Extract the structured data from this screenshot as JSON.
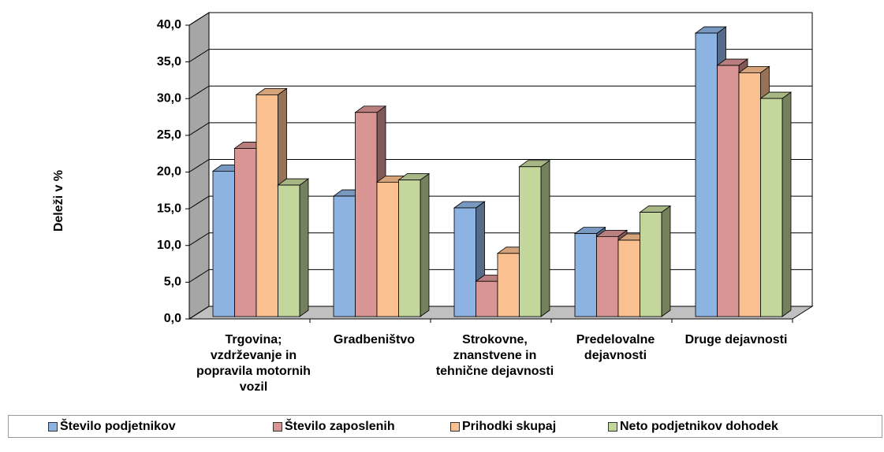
{
  "chart_data": {
    "type": "bar3d",
    "y_label": "Deleži v %",
    "categories": [
      "Trgovina; vzdrževanje in popravila motornih vozil",
      "Gradbeništvo",
      "Strokovne, znanstvene in tehnične dejavnosti",
      "Predelovalne dejavnosti",
      "Druge dejavnosti"
    ],
    "series": [
      {
        "name": "Število podjetnikov",
        "color": "#8db3e2",
        "values": [
          19.8,
          16.4,
          14.8,
          11.3,
          38.6
        ]
      },
      {
        "name": "Število zaposlenih",
        "color": "#d99594",
        "values": [
          22.9,
          27.8,
          4.8,
          10.9,
          34.2
        ]
      },
      {
        "name": "Prihodki skupaj",
        "color": "#fac08f",
        "values": [
          30.2,
          18.3,
          8.6,
          10.4,
          33.2
        ]
      },
      {
        "name": "Neto podjetnikov dohodek",
        "color": "#c3d69b",
        "values": [
          17.9,
          18.6,
          20.4,
          14.2,
          29.7
        ]
      }
    ],
    "ylim": [
      0,
      40
    ],
    "yticks": [
      {
        "value": 0,
        "label": "0,0"
      },
      {
        "value": 5,
        "label": "5,0"
      },
      {
        "value": 10,
        "label": "10,0"
      },
      {
        "value": 15,
        "label": "15,0"
      },
      {
        "value": 20,
        "label": "20,0"
      },
      {
        "value": 25,
        "label": "25,0"
      },
      {
        "value": 30,
        "label": "30,0"
      },
      {
        "value": 35,
        "label": "35,0"
      },
      {
        "value": 40,
        "label": "40,0"
      }
    ],
    "grid": true,
    "legend": "bottom"
  }
}
